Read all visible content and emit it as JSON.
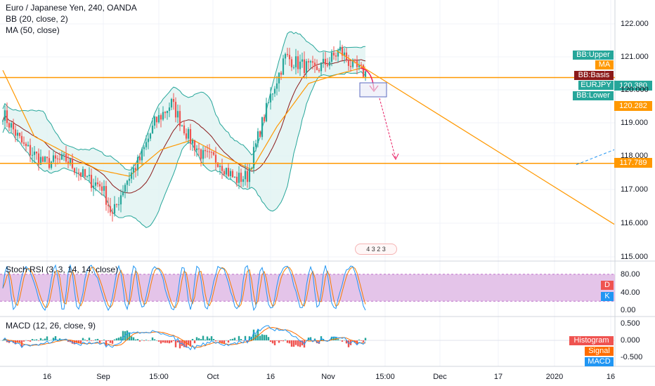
{
  "header": {
    "symbol_line": "Euro / Japanese Yen, 240, OANDA",
    "bb_line": "BB (20, close, 2)",
    "ma_line": "MA (50, close)"
  },
  "panes": {
    "stoch_title": "Stoch RSI (3, 3, 14, 14, close)",
    "macd_title": "MACD (12, 26, close, 9)"
  },
  "legend_tags": {
    "bb_upper": "BB:Upper",
    "ma": "MA",
    "bb_basis": "BB:Basis",
    "symbol": "EURJPY",
    "bb_lower": "BB:Lower",
    "stoch_d": "D",
    "stoch_k": "K",
    "histogram": "Histogram",
    "signal": "Signal",
    "macd": "MACD"
  },
  "price_tags": {
    "current": "120.380",
    "ma_value": "120.282",
    "support": "117.789"
  },
  "events_badge": "4 3 2 3",
  "colors": {
    "bb": "#26a69a",
    "bb_fill": "#e0f2f1",
    "ma": "#ff9800",
    "basis": "#8b1a1a",
    "symbol_tag": "#26a69a",
    "bull": "#26a69a",
    "bear": "#ef5350",
    "level_line": "#ff9800",
    "projection": "#e91e63",
    "stoch_band": "#e1bee7",
    "stoch_k": "#2196f3",
    "stoch_d": "#f57c00",
    "macd_line": "#2196f3",
    "signal_line": "#ff6d00",
    "hist_pos": "#26a69a",
    "hist_neg": "#ef5350"
  },
  "chart_data": [
    {
      "type": "candlestick",
      "title": "Euro / Japanese Yen, 240, OANDA",
      "indicators": [
        "BB (20, close, 2)",
        "MA (50, close)"
      ],
      "x_ticks": [
        "16",
        "Sep",
        "15:00",
        "Oct",
        "16",
        "Nov",
        "15:00",
        "Dec",
        "17",
        "2020",
        "16"
      ],
      "y_ticks": [
        "122.000",
        "121.000",
        "120.000",
        "119.000",
        "118.000",
        "117.000",
        "116.000",
        "115.000"
      ],
      "ylim": [
        114.8,
        122.6
      ],
      "close_anchors": [
        [
          0,
          119.3
        ],
        [
          10,
          118.3
        ],
        [
          20,
          117.8
        ],
        [
          30,
          117.9
        ],
        [
          40,
          117.3
        ],
        [
          47,
          117.1
        ],
        [
          52,
          116.2
        ],
        [
          58,
          117.2
        ],
        [
          65,
          117.9
        ],
        [
          72,
          119.0
        ],
        [
          80,
          119.6
        ],
        [
          88,
          118.6
        ],
        [
          95,
          118.0
        ],
        [
          102,
          117.9
        ],
        [
          110,
          117.3
        ],
        [
          116,
          117.4
        ],
        [
          122,
          118.8
        ],
        [
          128,
          120.0
        ],
        [
          134,
          121.0
        ],
        [
          140,
          120.8
        ],
        [
          148,
          120.6
        ],
        [
          155,
          120.9
        ],
        [
          160,
          121.2
        ],
        [
          166,
          120.7
        ],
        [
          172,
          120.5
        ]
      ],
      "ma_anchors": [
        [
          0,
          120.6
        ],
        [
          15,
          118.6
        ],
        [
          30,
          118.1
        ],
        [
          45,
          117.6
        ],
        [
          60,
          117.4
        ],
        [
          75,
          118.2
        ],
        [
          90,
          118.5
        ],
        [
          105,
          118.0
        ],
        [
          118,
          117.6
        ],
        [
          130,
          118.9
        ],
        [
          145,
          120.2
        ],
        [
          160,
          120.5
        ],
        [
          172,
          120.7
        ]
      ],
      "levels": [
        {
          "value": 120.38,
          "label": "120.380"
        },
        {
          "value": 117.789,
          "label": "117.789"
        }
      ],
      "trendline": {
        "from": {
          "bar": 158,
          "price": 121.2
        },
        "to": {
          "bar": 290,
          "price": 115.95
        }
      },
      "dashed_trendline": {
        "from": {
          "bar": 272,
          "price": 117.75
        },
        "to": {
          "bar": 290,
          "price": 118.2
        }
      }
    },
    {
      "type": "line",
      "title": "Stoch RSI (3, 3, 14, 14, close)",
      "y_ticks": [
        "80.00",
        "40.00",
        "0.00"
      ],
      "ylim": [
        -5,
        100
      ],
      "band": [
        20,
        80
      ],
      "series": [
        {
          "name": "K"
        },
        {
          "name": "D"
        }
      ]
    },
    {
      "type": "bar",
      "title": "MACD (12, 26, close, 9)",
      "y_ticks": [
        "0.500",
        "0.000",
        "-0.500"
      ],
      "ylim": [
        -0.75,
        0.65
      ],
      "series": [
        {
          "name": "Histogram"
        },
        {
          "name": "Signal"
        },
        {
          "name": "MACD"
        }
      ]
    }
  ]
}
